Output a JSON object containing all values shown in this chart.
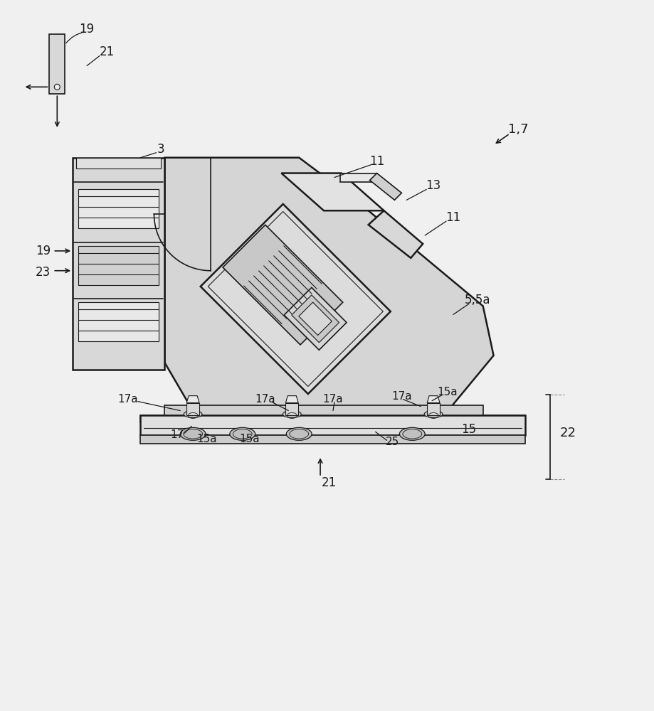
{
  "bg_color": "#f0f0f0",
  "line_color": "#1a1a1a",
  "fill_light": "#e0e0e0",
  "fill_mid": "#cccccc",
  "fill_dark": "#b0b0b0",
  "labels": {
    "19_top": "19",
    "21_top": "21",
    "17": "17",
    "17a_1": "17a",
    "17a_2": "17a",
    "17a_3": "17a",
    "17a_4": "17a",
    "15a_1": "15a",
    "15a_2": "15a",
    "15a_3": "15a",
    "15": "15",
    "15a_r": "15a",
    "25": "25",
    "22": "22",
    "21_bot": "21",
    "3": "3",
    "11_top": "11",
    "11_right": "11",
    "13": "13",
    "5_5a": "5,5a",
    "19_mid": "19",
    "23": "23",
    "1_7": "1,7"
  }
}
